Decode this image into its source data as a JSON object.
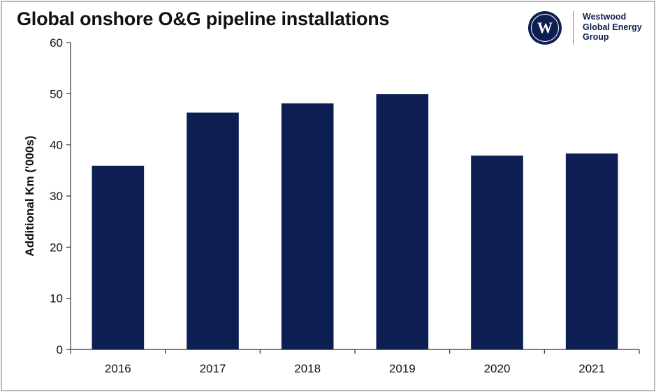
{
  "chart_data": {
    "type": "bar",
    "title": "Global onshore O&G pipeline installations",
    "categories": [
      "2016",
      "2017",
      "2018",
      "2019",
      "2020",
      "2021"
    ],
    "values": [
      35.9,
      46.3,
      48.1,
      49.9,
      37.9,
      38.3
    ],
    "xlabel": "",
    "ylabel": "Additional Km ('000s)",
    "ylim": [
      0,
      60
    ],
    "yticks": [
      0,
      10,
      20,
      30,
      40,
      50,
      60
    ],
    "grid": false,
    "legend": "none",
    "bar_color": "#0d1f52"
  },
  "logo": {
    "mark": "W",
    "lines": [
      "Westwood",
      "Global Energy",
      "Group"
    ]
  }
}
